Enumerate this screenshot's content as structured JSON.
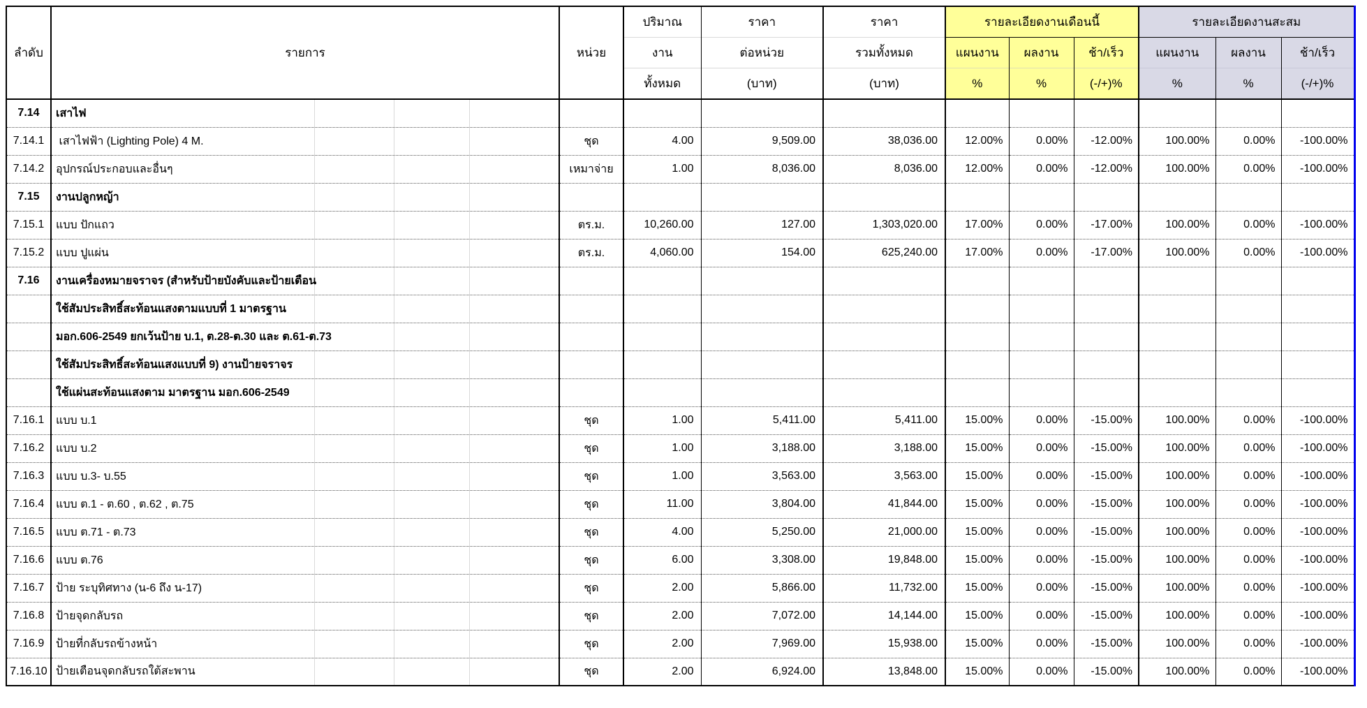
{
  "table": {
    "colors": {
      "month_header_bg": "#FFFF99",
      "cumulative_header_bg": "#D9D9E6",
      "print_area_border_right": "#0000EE",
      "grid_border": "#000000"
    },
    "header": {
      "col_no": "ลำดับ",
      "col_desc": "รายการ",
      "col_unit": "หน่วย",
      "col_qty": [
        "ปริมาณ",
        "งาน",
        "ทั้งหมด"
      ],
      "col_unit_price": [
        "ราคา",
        "ต่อหน่วย",
        "(บาท)"
      ],
      "col_total_price": [
        "ราคา",
        "รวมทั้งหมด",
        "(บาท)"
      ],
      "group_month": "รายละเอียดงานเดือนนี้",
      "group_cumulative": "รายละเอียดงานสะสม",
      "sub_plan": "แผนงาน",
      "sub_actual": "ผลงาน",
      "sub_diff": "ช้า/เร็ว",
      "sub_pct": "%",
      "sub_diff_pct": "(-/+)%"
    },
    "rows": [
      {
        "kind": "section",
        "no": "7.14",
        "desc": "เสาไฟ",
        "unit": "",
        "qty": "",
        "unit_price": "",
        "total_price": "",
        "month_plan": "",
        "month_actual": "",
        "month_diff": "",
        "cum_plan": "",
        "cum_actual": "",
        "cum_diff": ""
      },
      {
        "kind": "item",
        "no": "7.14.1",
        "desc": " เสาไฟฟ้า (Lighting Pole) 4 M.",
        "unit": "ชุด",
        "qty": "4.00",
        "unit_price": "9,509.00",
        "total_price": "38,036.00",
        "month_plan": "12.00%",
        "month_actual": "0.00%",
        "month_diff": "-12.00%",
        "cum_plan": "100.00%",
        "cum_actual": "0.00%",
        "cum_diff": "-100.00%"
      },
      {
        "kind": "item",
        "no": "7.14.2",
        "desc": "อุปกรณ์ประกอบและอื่นๆ",
        "unit": "เหมาจ่าย",
        "qty": "1.00",
        "unit_price": "8,036.00",
        "total_price": "8,036.00",
        "month_plan": "12.00%",
        "month_actual": "0.00%",
        "month_diff": "-12.00%",
        "cum_plan": "100.00%",
        "cum_actual": "0.00%",
        "cum_diff": "-100.00%"
      },
      {
        "kind": "section",
        "no": "7.15",
        "desc": "งานปลูกหญ้า",
        "unit": "",
        "qty": "",
        "unit_price": "",
        "total_price": "",
        "month_plan": "",
        "month_actual": "",
        "month_diff": "",
        "cum_plan": "",
        "cum_actual": "",
        "cum_diff": ""
      },
      {
        "kind": "item",
        "no": "7.15.1",
        "desc": "แบบ ปักแถว",
        "unit": "ตร.ม.",
        "qty": "10,260.00",
        "unit_price": "127.00",
        "total_price": "1,303,020.00",
        "month_plan": "17.00%",
        "month_actual": "0.00%",
        "month_diff": "-17.00%",
        "cum_plan": "100.00%",
        "cum_actual": "0.00%",
        "cum_diff": "-100.00%"
      },
      {
        "kind": "item",
        "no": "7.15.2",
        "desc": "แบบ ปูแผ่น",
        "unit": "ตร.ม.",
        "qty": "4,060.00",
        "unit_price": "154.00",
        "total_price": "625,240.00",
        "month_plan": "17.00%",
        "month_actual": "0.00%",
        "month_diff": "-17.00%",
        "cum_plan": "100.00%",
        "cum_actual": "0.00%",
        "cum_diff": "-100.00%"
      },
      {
        "kind": "section",
        "no": "7.16",
        "desc": "งานเครื่องหมายจราจร (สำหรับป้ายบังคับและป้ายเตือน",
        "unit": "",
        "qty": "",
        "unit_price": "",
        "total_price": "",
        "month_plan": "",
        "month_actual": "",
        "month_diff": "",
        "cum_plan": "",
        "cum_actual": "",
        "cum_diff": ""
      },
      {
        "kind": "note",
        "no": "",
        "desc": "ใช้สัมประสิทธิ์สะท้อนแสงตามแบบที่ 1 มาตรฐาน",
        "unit": "",
        "qty": "",
        "unit_price": "",
        "total_price": "",
        "month_plan": "",
        "month_actual": "",
        "month_diff": "",
        "cum_plan": "",
        "cum_actual": "",
        "cum_diff": ""
      },
      {
        "kind": "note",
        "no": "",
        "desc": "มอก.606-2549 ยกเว้นป้าย บ.1, ต.28-ต.30 และ ต.61-ต.73",
        "unit": "",
        "qty": "",
        "unit_price": "",
        "total_price": "",
        "month_plan": "",
        "month_actual": "",
        "month_diff": "",
        "cum_plan": "",
        "cum_actual": "",
        "cum_diff": ""
      },
      {
        "kind": "note",
        "no": "",
        "desc": "ใช้สัมประสิทธิ์สะท้อนแสงแบบที่ 9) งานป้ายจราจร",
        "unit": "",
        "qty": "",
        "unit_price": "",
        "total_price": "",
        "month_plan": "",
        "month_actual": "",
        "month_diff": "",
        "cum_plan": "",
        "cum_actual": "",
        "cum_diff": ""
      },
      {
        "kind": "note",
        "no": "",
        "desc": "ใช้แผ่นสะท้อนแสงตาม มาตรฐาน มอก.606-2549",
        "unit": "",
        "qty": "",
        "unit_price": "",
        "total_price": "",
        "month_plan": "",
        "month_actual": "",
        "month_diff": "",
        "cum_plan": "",
        "cum_actual": "",
        "cum_diff": ""
      },
      {
        "kind": "item",
        "no": "7.16.1",
        "desc": "แบบ บ.1",
        "unit": "ชุด",
        "qty": "1.00",
        "unit_price": "5,411.00",
        "total_price": "5,411.00",
        "month_plan": "15.00%",
        "month_actual": "0.00%",
        "month_diff": "-15.00%",
        "cum_plan": "100.00%",
        "cum_actual": "0.00%",
        "cum_diff": "-100.00%"
      },
      {
        "kind": "item",
        "no": "7.16.2",
        "desc": "แบบ บ.2",
        "unit": "ชุด",
        "qty": "1.00",
        "unit_price": "3,188.00",
        "total_price": "3,188.00",
        "month_plan": "15.00%",
        "month_actual": "0.00%",
        "month_diff": "-15.00%",
        "cum_plan": "100.00%",
        "cum_actual": "0.00%",
        "cum_diff": "-100.00%"
      },
      {
        "kind": "item",
        "no": "7.16.3",
        "desc": "แบบ บ.3- บ.55",
        "unit": "ชุด",
        "qty": "1.00",
        "unit_price": "3,563.00",
        "total_price": "3,563.00",
        "month_plan": "15.00%",
        "month_actual": "0.00%",
        "month_diff": "-15.00%",
        "cum_plan": "100.00%",
        "cum_actual": "0.00%",
        "cum_diff": "-100.00%"
      },
      {
        "kind": "item",
        "no": "7.16.4",
        "desc": "แบบ ต.1 - ต.60 , ต.62 , ต.75",
        "unit": "ชุด",
        "qty": "11.00",
        "unit_price": "3,804.00",
        "total_price": "41,844.00",
        "month_plan": "15.00%",
        "month_actual": "0.00%",
        "month_diff": "-15.00%",
        "cum_plan": "100.00%",
        "cum_actual": "0.00%",
        "cum_diff": "-100.00%"
      },
      {
        "kind": "item",
        "no": "7.16.5",
        "desc": "แบบ ต.71 - ต.73",
        "unit": "ชุด",
        "qty": "4.00",
        "unit_price": "5,250.00",
        "total_price": "21,000.00",
        "month_plan": "15.00%",
        "month_actual": "0.00%",
        "month_diff": "-15.00%",
        "cum_plan": "100.00%",
        "cum_actual": "0.00%",
        "cum_diff": "-100.00%"
      },
      {
        "kind": "item",
        "no": "7.16.6",
        "desc": "แบบ ต.76",
        "unit": "ชุด",
        "qty": "6.00",
        "unit_price": "3,308.00",
        "total_price": "19,848.00",
        "month_plan": "15.00%",
        "month_actual": "0.00%",
        "month_diff": "-15.00%",
        "cum_plan": "100.00%",
        "cum_actual": "0.00%",
        "cum_diff": "-100.00%"
      },
      {
        "kind": "item",
        "no": "7.16.7",
        "desc": "ป้าย ระบุทิศทาง (น-6 ถึง น-17)",
        "unit": "ชุด",
        "qty": "2.00",
        "unit_price": "5,866.00",
        "total_price": "11,732.00",
        "month_plan": "15.00%",
        "month_actual": "0.00%",
        "month_diff": "-15.00%",
        "cum_plan": "100.00%",
        "cum_actual": "0.00%",
        "cum_diff": "-100.00%"
      },
      {
        "kind": "item",
        "no": "7.16.8",
        "desc": "ป้ายจุดกลับรถ",
        "unit": "ชุด",
        "qty": "2.00",
        "unit_price": "7,072.00",
        "total_price": "14,144.00",
        "month_plan": "15.00%",
        "month_actual": "0.00%",
        "month_diff": "-15.00%",
        "cum_plan": "100.00%",
        "cum_actual": "0.00%",
        "cum_diff": "-100.00%"
      },
      {
        "kind": "item",
        "no": "7.16.9",
        "desc": "ป้ายที่กลับรถข้างหน้า",
        "unit": "ชุด",
        "qty": "2.00",
        "unit_price": "7,969.00",
        "total_price": "15,938.00",
        "month_plan": "15.00%",
        "month_actual": "0.00%",
        "month_diff": "-15.00%",
        "cum_plan": "100.00%",
        "cum_actual": "0.00%",
        "cum_diff": "-100.00%"
      },
      {
        "kind": "item",
        "no": "7.16.10",
        "desc": "ป้ายเตือนจุดกลับรถใต้สะพาน",
        "unit": "ชุด",
        "qty": "2.00",
        "unit_price": "6,924.00",
        "total_price": "13,848.00",
        "month_plan": "15.00%",
        "month_actual": "0.00%",
        "month_diff": "-15.00%",
        "cum_plan": "100.00%",
        "cum_actual": "0.00%",
        "cum_diff": "-100.00%"
      }
    ]
  }
}
